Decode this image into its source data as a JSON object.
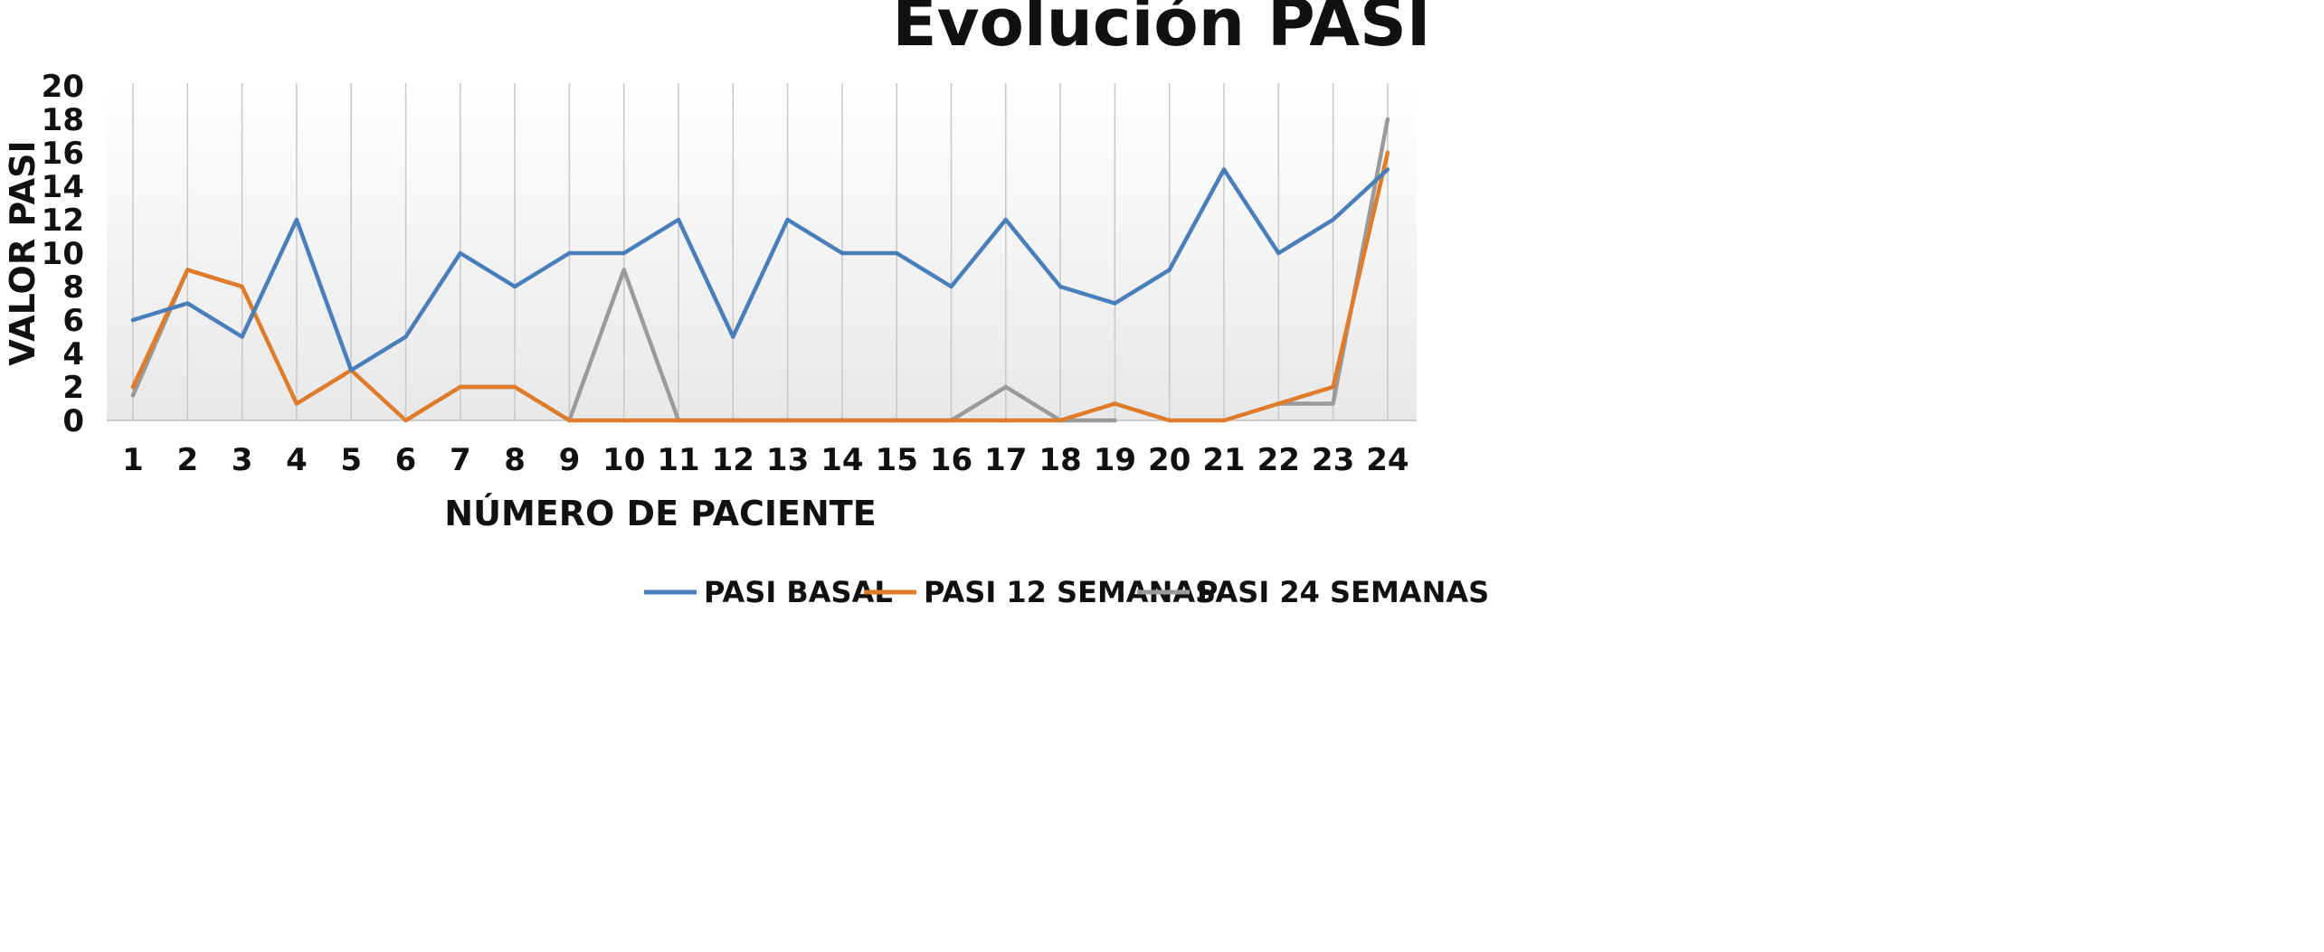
{
  "chart_data": {
    "type": "line",
    "title": "Evolución PASI",
    "xlabel": "NÚMERO DE PACIENTE",
    "ylabel": "VALOR PASI",
    "categories": [
      "1",
      "2",
      "3",
      "4",
      "5",
      "6",
      "7",
      "8",
      "9",
      "10",
      "11",
      "12",
      "13",
      "14",
      "15",
      "16",
      "17",
      "18",
      "19",
      "20",
      "21",
      "22",
      "23",
      "24"
    ],
    "ylim": [
      0,
      20
    ],
    "yticks": [
      "0",
      "2",
      "4",
      "6",
      "8",
      "10",
      "12",
      "14",
      "16",
      "18",
      "20"
    ],
    "grid": "vertical",
    "legend_position": "bottom",
    "series": [
      {
        "name": "PASI BASAL",
        "color": "#4a7ebb",
        "values": [
          6,
          7,
          5,
          12,
          3,
          5,
          10,
          8,
          10,
          10,
          12,
          5,
          12,
          10,
          10,
          8,
          12,
          8,
          7,
          9,
          15,
          10,
          12,
          15
        ]
      },
      {
        "name": "PASI 12 SEMANAS",
        "color": "#e07b2a",
        "values": [
          2,
          9,
          8,
          1,
          3,
          0,
          2,
          2,
          0,
          0,
          0,
          0,
          0,
          0,
          0,
          0,
          0,
          0,
          1,
          0,
          0,
          1,
          2,
          16
        ]
      },
      {
        "name": "PASI 24 SEMANAS",
        "color": "#9a9a9a",
        "values": [
          1.5,
          9,
          8,
          null,
          null,
          0,
          2,
          2,
          0,
          9,
          0,
          0,
          0,
          0,
          0,
          0,
          2,
          0,
          0,
          null,
          null,
          1,
          1,
          18
        ]
      }
    ]
  }
}
